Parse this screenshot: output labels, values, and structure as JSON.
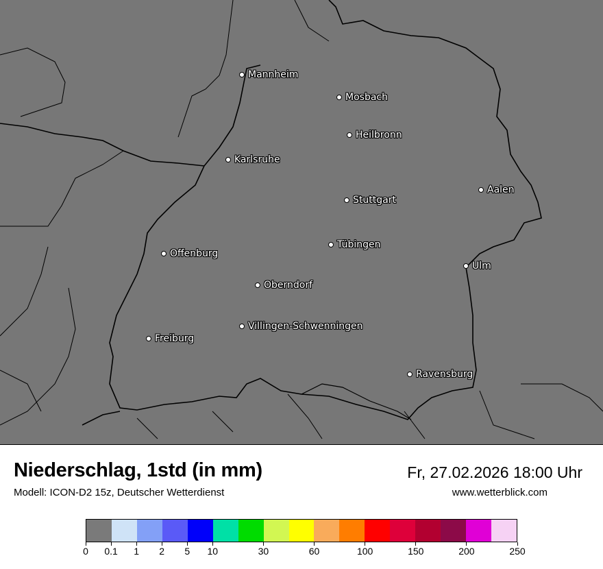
{
  "header": {
    "title": "Niederschlag, 1std (in mm)",
    "subtitle": "Modell: ICON-D2 15z, Deutscher Wetterdienst",
    "datetime": "Fr, 27.02.2026 18:00 Uhr",
    "website": "www.wetterblick.com"
  },
  "map": {
    "background_color": "#777777",
    "cities": [
      {
        "name": "Mannheim"
      },
      {
        "name": "Mosbach"
      },
      {
        "name": "Heilbronn"
      },
      {
        "name": "Karlsruhe"
      },
      {
        "name": "Aalen"
      },
      {
        "name": "Stuttgart"
      },
      {
        "name": "Tübingen"
      },
      {
        "name": "Offenburg"
      },
      {
        "name": "Ulm"
      },
      {
        "name": "Oberndorf"
      },
      {
        "name": "Villingen-Schwenningen"
      },
      {
        "name": "Freiburg"
      },
      {
        "name": "Ravensburg"
      }
    ]
  },
  "legend": {
    "colors": [
      "#7a7a7a",
      "#cfe3f7",
      "#83a0f7",
      "#5a5af7",
      "#0000fa",
      "#00e0a6",
      "#00dc00",
      "#d2f752",
      "#ffff00",
      "#f9ab5b",
      "#ff7d00",
      "#ff0000",
      "#de003a",
      "#b20030",
      "#8c0a48",
      "#e000d6",
      "#f6d2f4"
    ],
    "tick_labels": [
      "0",
      "0.1",
      "1",
      "2",
      "5",
      "10",
      "30",
      "60",
      "100",
      "150",
      "200",
      "250"
    ]
  }
}
